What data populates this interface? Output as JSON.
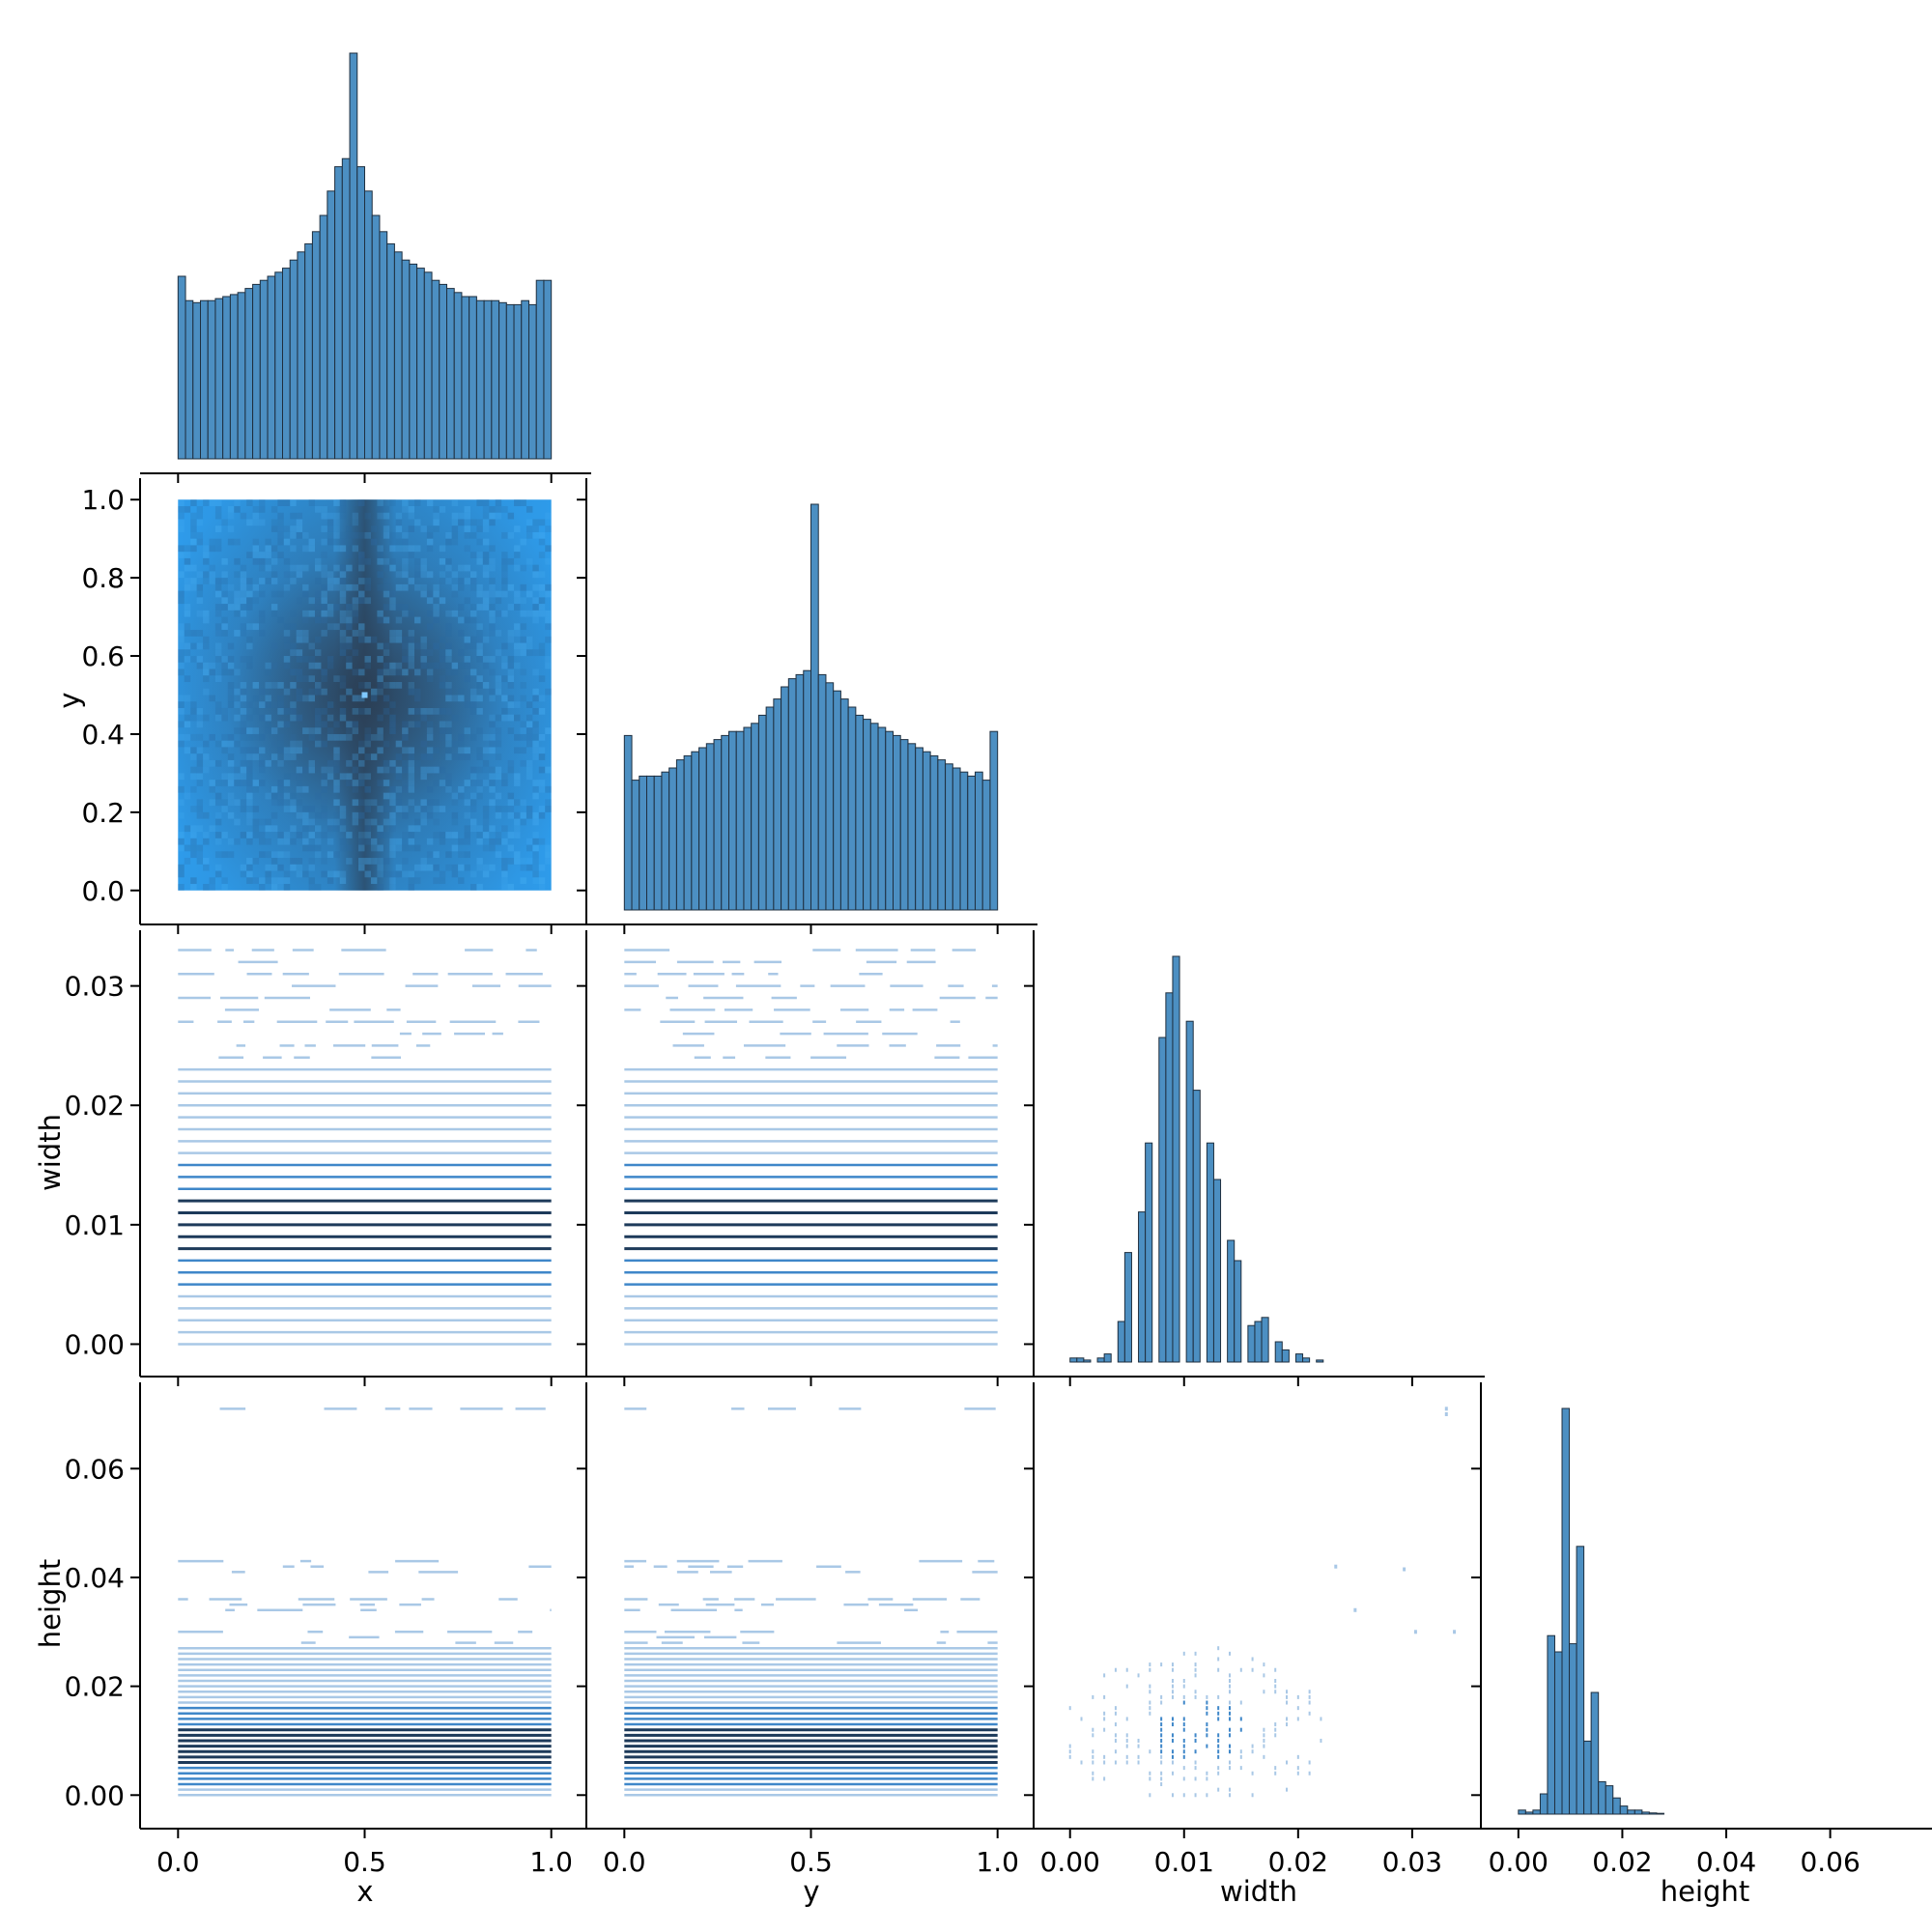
{
  "chart_data": {
    "type": "pairplot",
    "variables": [
      "x",
      "y",
      "width",
      "height"
    ],
    "layout": "corner",
    "colors": {
      "bar_fill": "#4c8fc2",
      "bar_edge": "#1f2f3f",
      "heat_light": "#2e9bea",
      "heat_dark": "#2b3f55",
      "line_light": "#a9c8e6",
      "line_mid": "#3f87c9",
      "line_dark": "#1d3a5a"
    },
    "axes_text": {
      "x_label": "x",
      "y_label": "y",
      "width_label": "width",
      "height_label": "height"
    },
    "ticks": {
      "x": [
        "0.0",
        "0.5",
        "1.0"
      ],
      "y": [
        "0.0",
        "0.5",
        "1.0"
      ],
      "y_left": [
        "0.0",
        "0.2",
        "0.4",
        "0.6",
        "0.8",
        "1.0"
      ],
      "width": [
        "0.00",
        "0.01",
        "0.02",
        "0.03"
      ],
      "height_left": [
        "0.00",
        "0.02",
        "0.04",
        "0.06"
      ],
      "height_bottom": [
        "0.00",
        "0.02",
        "0.04",
        "0.06"
      ]
    },
    "ranges": {
      "x": [
        -0.05,
        1.05
      ],
      "y": [
        -0.05,
        1.05
      ],
      "width": [
        -0.0015,
        0.0345
      ],
      "height": [
        -0.0035,
        0.0755
      ]
    },
    "histograms": {
      "x": {
        "range": [
          0,
          1
        ],
        "counts": [
          0.45,
          0.39,
          0.385,
          0.39,
          0.39,
          0.395,
          0.4,
          0.405,
          0.41,
          0.42,
          0.43,
          0.44,
          0.45,
          0.46,
          0.47,
          0.49,
          0.51,
          0.53,
          0.56,
          0.6,
          0.66,
          0.72,
          0.74,
          1.0,
          0.72,
          0.66,
          0.6,
          0.56,
          0.53,
          0.51,
          0.49,
          0.48,
          0.47,
          0.46,
          0.44,
          0.43,
          0.42,
          0.41,
          0.4,
          0.4,
          0.39,
          0.39,
          0.39,
          0.385,
          0.38,
          0.38,
          0.39,
          0.38,
          0.44,
          0.44
        ]
      },
      "y": {
        "range": [
          0,
          1
        ],
        "counts": [
          0.43,
          0.32,
          0.33,
          0.33,
          0.33,
          0.34,
          0.35,
          0.37,
          0.38,
          0.39,
          0.4,
          0.41,
          0.42,
          0.43,
          0.44,
          0.44,
          0.45,
          0.46,
          0.48,
          0.5,
          0.52,
          0.55,
          0.57,
          0.58,
          0.59,
          1.0,
          0.58,
          0.56,
          0.54,
          0.52,
          0.5,
          0.48,
          0.47,
          0.46,
          0.45,
          0.44,
          0.43,
          0.42,
          0.41,
          0.4,
          0.39,
          0.38,
          0.37,
          0.36,
          0.35,
          0.34,
          0.33,
          0.34,
          0.32,
          0.44
        ]
      },
      "width": {
        "bins": [
          0.0003,
          0.0009,
          0.0015,
          0.0021,
          0.0027,
          0.0033,
          0.0039,
          0.0045,
          0.0051,
          0.0057,
          0.0063,
          0.0069,
          0.0075,
          0.0081,
          0.0087,
          0.0093,
          0.0099,
          0.0105,
          0.0111,
          0.0117,
          0.0123,
          0.0129,
          0.0135,
          0.0141,
          0.0147,
          0.0153,
          0.0159,
          0.0165,
          0.0171,
          0.0177,
          0.0183,
          0.0189,
          0.0195,
          0.0201,
          0.0207,
          0.0213,
          0.0219,
          0.0225,
          0.0231,
          0.0237
        ],
        "counts": [
          0.01,
          0.01,
          0.005,
          0.0,
          0.01,
          0.02,
          0.0,
          0.1,
          0.27,
          0.0,
          0.37,
          0.54,
          0.0,
          0.8,
          0.91,
          1.0,
          0.0,
          0.84,
          0.67,
          0.0,
          0.54,
          0.45,
          0.0,
          0.3,
          0.25,
          0.0,
          0.09,
          0.1,
          0.11,
          0.0,
          0.05,
          0.03,
          0.0,
          0.02,
          0.01,
          0.0,
          0.005,
          0.0,
          0.0,
          0.0
        ]
      },
      "height": {
        "bins": [
          0.0007,
          0.0021,
          0.0035,
          0.0049,
          0.0063,
          0.0077,
          0.0091,
          0.0105,
          0.0119,
          0.0133,
          0.0147,
          0.0161,
          0.0175,
          0.0189,
          0.0203,
          0.0217,
          0.0231,
          0.0245,
          0.0259,
          0.0273
        ],
        "counts": [
          0.01,
          0.005,
          0.01,
          0.05,
          0.44,
          0.4,
          1.0,
          0.42,
          0.66,
          0.18,
          0.3,
          0.08,
          0.07,
          0.04,
          0.02,
          0.01,
          0.01,
          0.005,
          0.003,
          0.002
        ]
      }
    }
  }
}
